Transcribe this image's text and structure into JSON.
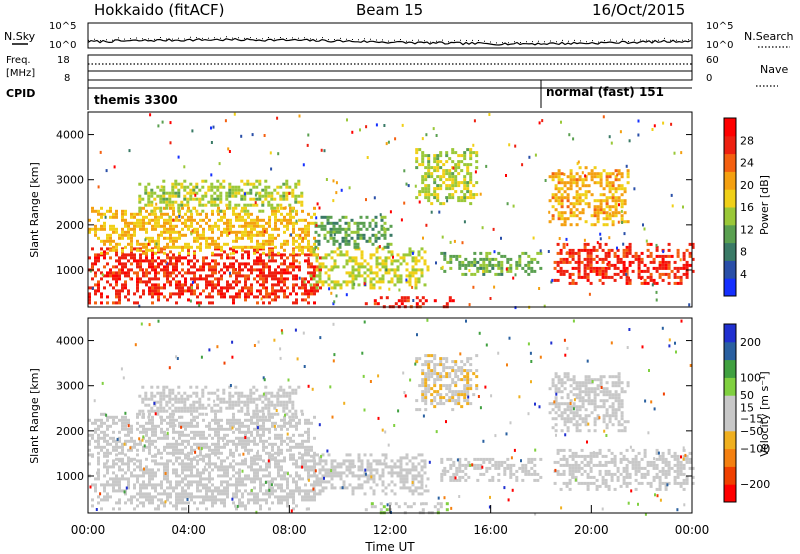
{
  "header": {
    "title": "Hokkaido (fitACF)",
    "beam": "Beam 15",
    "date": "16/Oct/2015"
  },
  "sky_panel": {
    "left_label": "N.Sky",
    "right_label": "N.Search",
    "tick_top": "10^5",
    "tick_bottom": "10^0",
    "right_tick_top": "10^5",
    "right_tick_bottom": "10^0"
  },
  "freq_panel": {
    "left_label_1": "Freq.",
    "left_label_2": "[MHz]",
    "tick_top": "18",
    "tick_bottom": "8",
    "right_label": "Nave",
    "right_tick_top": "60",
    "right_tick_bottom": "0"
  },
  "cpid_panel": {
    "label": "CPID",
    "mode_1": "themis 3300",
    "mode_2": "normal (fast) 151"
  },
  "colors": {
    "power_scale": [
      "#1530ff",
      "#2a4fa8",
      "#3a7a66",
      "#5aa050",
      "#9ac838",
      "#f0d018",
      "#f4a010",
      "#f46010",
      "#ee2010",
      "#ff0000"
    ],
    "velocity_scale": [
      "#ff0000",
      "#f04000",
      "#f48010",
      "#f0b020",
      "#c8c8c8",
      "#c8c8c8",
      "#80d040",
      "#40a040",
      "#2a60a0",
      "#2030d0"
    ]
  },
  "chart_data": [
    {
      "type": "heatmap",
      "name_key": "power",
      "ylabel": "Slant Range [km]",
      "xlim": [
        "00:00",
        "24:00"
      ],
      "ylim": [
        180,
        4500
      ],
      "y_ticks": [
        1000,
        2000,
        3000,
        4000
      ],
      "colorbar_label": "Power [dB]",
      "colorbar_ticks": [
        4,
        8,
        12,
        16,
        20,
        24,
        28
      ],
      "colorbar_range": [
        0,
        32
      ],
      "regions": [
        {
          "t0": 0.0,
          "t1": 9.2,
          "r0": 300,
          "r1": 1500,
          "value": 27
        },
        {
          "t0": 0.0,
          "t1": 9.0,
          "r0": 1400,
          "r1": 2400,
          "value": 19
        },
        {
          "t0": 2.0,
          "t1": 8.5,
          "r0": 2300,
          "r1": 3000,
          "value": 15
        },
        {
          "t0": 8.8,
          "t1": 13.5,
          "r0": 600,
          "r1": 1500,
          "value": 16
        },
        {
          "t0": 9.0,
          "t1": 12.0,
          "r0": 1500,
          "r1": 2200,
          "value": 11
        },
        {
          "t0": 11.0,
          "t1": 14.5,
          "r0": 200,
          "r1": 420,
          "value": 28
        },
        {
          "t0": 13.0,
          "t1": 15.5,
          "r0": 2500,
          "r1": 3700,
          "value": 15
        },
        {
          "t0": 14.0,
          "t1": 18.0,
          "r0": 900,
          "r1": 1400,
          "value": 12
        },
        {
          "t0": 18.5,
          "t1": 24.0,
          "r0": 700,
          "r1": 1600,
          "value": 27
        },
        {
          "t0": 18.3,
          "t1": 21.5,
          "r0": 2000,
          "r1": 3300,
          "value": 20
        }
      ]
    },
    {
      "type": "heatmap",
      "name_key": "velocity",
      "xlabel": "Time UT",
      "ylabel": "Slant Range [km]",
      "xlim": [
        "00:00",
        "24:00"
      ],
      "ylim": [
        180,
        4500
      ],
      "x_ticks": [
        "00:00",
        "04:00",
        "08:00",
        "12:00",
        "16:00",
        "20:00",
        "00:00"
      ],
      "y_ticks": [
        1000,
        2000,
        3000,
        4000
      ],
      "colorbar_label": "Velocity [m s⁻¹]",
      "colorbar_ticks": [
        -200,
        -100,
        -50,
        -15,
        15,
        50,
        100,
        200
      ],
      "colorbar_tick_labels": [
        "−200",
        "−100",
        "−50",
        "−15",
        "15",
        "50",
        "100",
        "200"
      ],
      "colorbar_range": [
        -250,
        250
      ],
      "regions": [
        {
          "t0": 0.0,
          "t1": 9.2,
          "r0": 300,
          "r1": 1500,
          "value": 0
        },
        {
          "t0": 0.0,
          "t1": 9.0,
          "r0": 1400,
          "r1": 2400,
          "value": 0
        },
        {
          "t0": 2.0,
          "t1": 8.5,
          "r0": 2300,
          "r1": 3000,
          "value": -5
        },
        {
          "t0": 8.8,
          "t1": 13.5,
          "r0": 600,
          "r1": 1500,
          "value": 0
        },
        {
          "t0": 11.0,
          "t1": 14.5,
          "r0": 200,
          "r1": 420,
          "value": 30
        },
        {
          "t0": 13.0,
          "t1": 15.5,
          "r0": 2500,
          "r1": 3700,
          "value": -30
        },
        {
          "t0": 14.0,
          "t1": 18.0,
          "r0": 900,
          "r1": 1400,
          "value": 0
        },
        {
          "t0": 18.5,
          "t1": 24.0,
          "r0": 700,
          "r1": 1600,
          "value": 0
        },
        {
          "t0": 18.3,
          "t1": 21.5,
          "r0": 2000,
          "r1": 3300,
          "value": 0
        }
      ]
    }
  ]
}
